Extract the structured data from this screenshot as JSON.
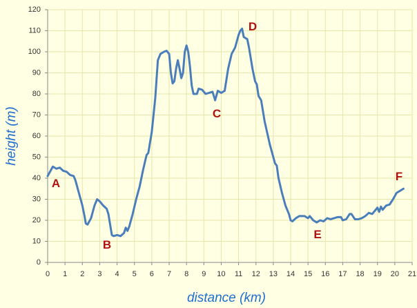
{
  "chart_data": {
    "type": "line",
    "xlabel": "distance (km)",
    "ylabel": "height (m)",
    "x": [
      0,
      0.3,
      0.5,
      0.7,
      0.9,
      1.1,
      1.3,
      1.5,
      1.6,
      1.8,
      2.0,
      2.1,
      2.2,
      2.3,
      2.5,
      2.7,
      2.85,
      3.0,
      3.2,
      3.4,
      3.5,
      3.6,
      3.7,
      3.8,
      4.0,
      4.2,
      4.4,
      4.5,
      4.6,
      4.7,
      4.9,
      5.1,
      5.3,
      5.5,
      5.7,
      5.8,
      6.0,
      6.2,
      6.35,
      6.5,
      6.7,
      6.85,
      7.0,
      7.1,
      7.2,
      7.3,
      7.4,
      7.5,
      7.6,
      7.7,
      7.8,
      7.9,
      8.0,
      8.1,
      8.2,
      8.3,
      8.4,
      8.6,
      8.7,
      8.9,
      9.1,
      9.3,
      9.5,
      9.65,
      9.8,
      10.0,
      10.2,
      10.4,
      10.6,
      10.8,
      11.0,
      11.1,
      11.2,
      11.3,
      11.5,
      11.6,
      11.8,
      11.95,
      12.05,
      12.15,
      12.3,
      12.5,
      12.8,
      13.0,
      13.1,
      13.2,
      13.3,
      13.5,
      13.7,
      13.9,
      14.0,
      14.1,
      14.3,
      14.5,
      14.8,
      15.0,
      15.1,
      15.3,
      15.5,
      15.7,
      15.9,
      16.1,
      16.3,
      16.5,
      16.7,
      16.9,
      17.0,
      17.2,
      17.4,
      17.5,
      17.7,
      17.9,
      18.1,
      18.3,
      18.5,
      18.7,
      18.9,
      19.0,
      19.1,
      19.2,
      19.3,
      19.5,
      19.7,
      19.9,
      20.1,
      20.3,
      20.5
    ],
    "values": [
      41,
      45.5,
      44.5,
      45,
      43.5,
      43,
      41.5,
      41,
      39,
      33,
      27,
      23,
      18.5,
      18,
      21,
      27,
      30,
      29,
      27,
      25.5,
      23,
      18,
      13,
      12.5,
      13,
      12.5,
      14,
      16.5,
      15,
      17,
      23,
      30,
      36,
      44,
      51,
      52,
      62,
      78,
      96,
      99,
      100,
      100.5,
      99,
      90,
      85,
      86,
      92,
      96,
      92,
      87.5,
      90,
      100,
      103,
      100,
      93,
      84,
      80,
      80,
      82.5,
      82,
      80,
      80.5,
      81,
      77,
      81.5,
      80.5,
      81.5,
      92,
      99,
      102,
      108,
      110,
      111,
      107,
      106,
      102,
      92,
      86,
      84.5,
      79,
      77,
      67,
      56,
      50,
      47,
      46,
      40,
      33,
      27,
      23,
      20,
      19.5,
      21,
      22,
      22,
      21,
      22,
      20,
      19,
      20,
      19.5,
      21,
      20.5,
      21,
      21.5,
      21.5,
      20,
      20.5,
      23,
      23,
      20.5,
      20.5,
      21,
      22,
      23.5,
      23,
      25,
      26,
      24,
      26.5,
      25,
      27,
      27.5,
      30,
      33,
      34,
      35
    ],
    "color": "#4a7ebb",
    "annotations": [
      "A",
      "B",
      "C",
      "D",
      "E",
      "F"
    ],
    "xlim": [
      0,
      21
    ],
    "ylim": [
      0,
      120
    ],
    "xticks": [
      0,
      1,
      2,
      3,
      4,
      5,
      6,
      7,
      8,
      9,
      10,
      11,
      12,
      13,
      14,
      15,
      16,
      17,
      18,
      19,
      20,
      21
    ],
    "yticks": [
      0,
      10,
      20,
      30,
      40,
      50,
      60,
      70,
      80,
      90,
      100,
      110,
      120
    ],
    "grid": true
  }
}
